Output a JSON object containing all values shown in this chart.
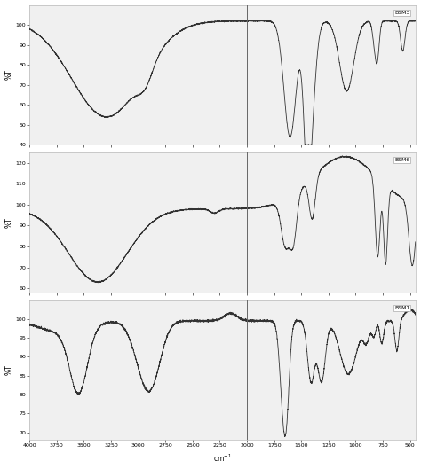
{
  "panels": [
    {
      "label": "BSM3",
      "ylim": [
        40,
        110
      ],
      "yticks": [
        40,
        50,
        60,
        70,
        80,
        90,
        100
      ],
      "ylabel": "%T"
    },
    {
      "label": "BSM6",
      "ylim": [
        58,
        125
      ],
      "yticks": [
        60,
        70,
        80,
        90,
        100,
        110,
        120
      ],
      "ylabel": "%T"
    },
    {
      "label": "BSM1",
      "ylim": [
        68,
        105
      ],
      "yticks": [
        70,
        75,
        80,
        85,
        90,
        95,
        100
      ],
      "ylabel": "%T"
    }
  ],
  "xmin": 4000,
  "xmax": 450,
  "divider_x": 2000,
  "line_color": "#333333",
  "bg_color": "#ffffff",
  "panel_bg": "#f0f0f0",
  "divider_color": "#666666",
  "figsize": [
    4.74,
    5.29
  ],
  "dpi": 100,
  "xticks": [
    4000,
    3750,
    3500,
    3250,
    3000,
    2750,
    2500,
    2250,
    2000,
    1750,
    1500,
    1250,
    1000,
    750,
    500
  ]
}
